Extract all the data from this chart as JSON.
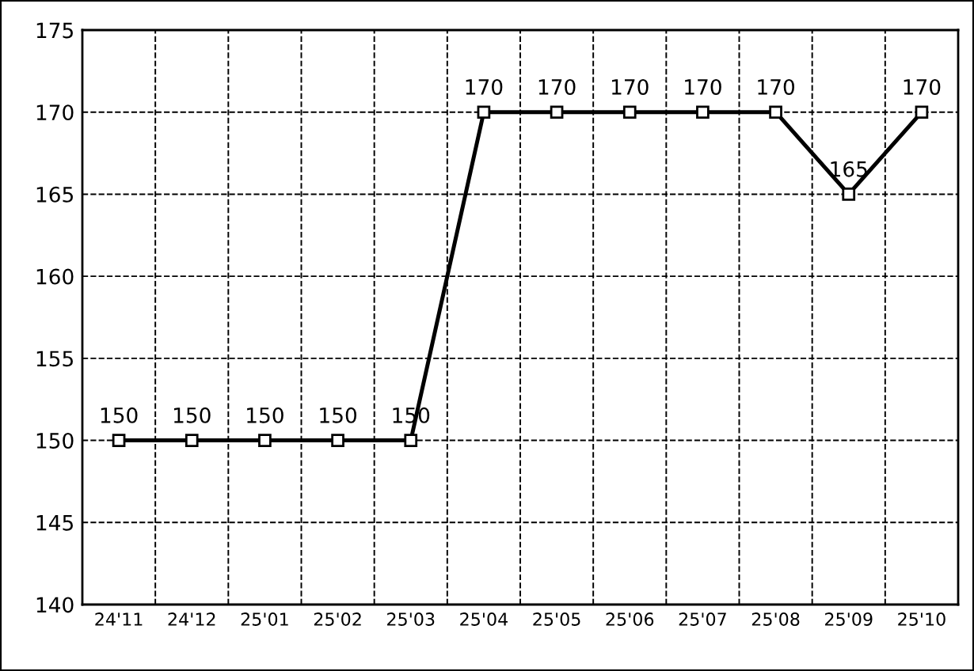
{
  "chart_data": {
    "type": "line",
    "categories": [
      "24'11",
      "24'12",
      "25'01",
      "25'02",
      "25'03",
      "25'04",
      "25'05",
      "25'06",
      "25'07",
      "25'08",
      "25'09",
      "25'10"
    ],
    "series": [
      {
        "color": "#000000",
        "values": [
          150,
          150,
          150,
          150,
          150,
          170,
          170,
          170,
          170,
          170,
          165,
          170
        ]
      }
    ],
    "ylim": [
      140,
      175
    ],
    "yticks": [
      140,
      145,
      150,
      155,
      160,
      165,
      170,
      175
    ],
    "grid": true,
    "marker": "square",
    "line_style": "solid",
    "data_labels": true
  }
}
